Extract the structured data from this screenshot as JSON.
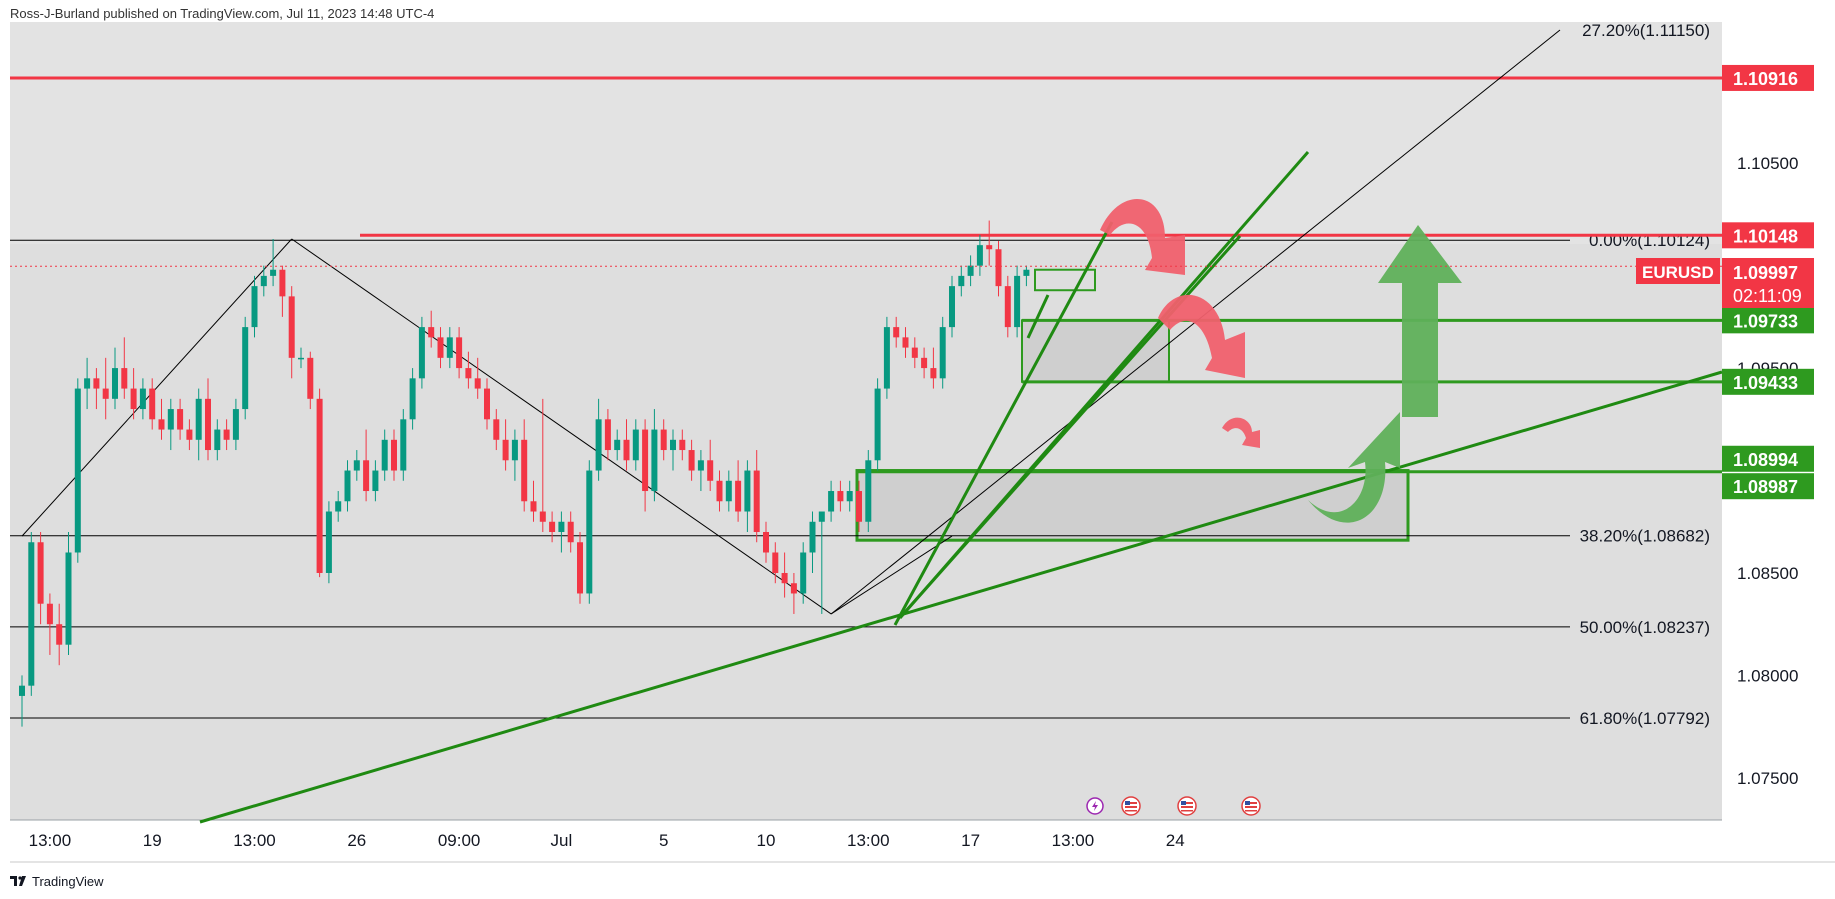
{
  "header": {
    "publisher_line": "Ross-J-Burland published on TradingView.com, Jul 11, 2023 14:48 UTC-4"
  },
  "footer": {
    "logo_text": "TradingView",
    "logo_icon": "tradingview-logo-icon"
  },
  "colors": {
    "background": "#ffffff",
    "pane_bg": "#e3e3e3",
    "pane_dark": "#d4d4d4",
    "up_candle": "#089981",
    "down_candle": "#f23645",
    "red_level": "#f23645",
    "green_level": "#2e9a1f",
    "trendline": "#1f8a12",
    "fib_line": "#000000",
    "arrow_red": "#f0606d",
    "arrow_green": "#5fb05a"
  },
  "symbol_badge": {
    "label": "EURUSD",
    "price": "1.09997",
    "countdown": "02:11:09"
  },
  "price_tags": [
    {
      "price": 1.10916,
      "label": "1.10916",
      "color": "#f23645"
    },
    {
      "price": 1.10148,
      "label": "1.10148",
      "color": "#f23645"
    },
    {
      "price": 1.09733,
      "label": "1.09733",
      "color": "#2e9a1f"
    },
    {
      "price": 1.09433,
      "label": "1.09433",
      "color": "#2e9a1f"
    },
    {
      "price": 1.08994,
      "label": "1.08994",
      "color": "#2e9a1f"
    },
    {
      "price": 1.08987,
      "label": "1.08987",
      "color": "#2e9a1f"
    }
  ],
  "events_icons": [
    "lightning-icon",
    "us-flag-icon",
    "us-flag-icon",
    "us-flag-icon"
  ],
  "chart_data": {
    "type": "candlestick",
    "symbol": "EURUSD",
    "ylim": [
      1.0745,
      1.1115
    ],
    "y_ticks": [
      {
        "value": 1.105,
        "label": "1.10500"
      },
      {
        "value": 1.095,
        "label": "1.09500"
      },
      {
        "value": 1.085,
        "label": "1.08500"
      },
      {
        "value": 1.08,
        "label": "1.08000"
      },
      {
        "value": 1.075,
        "label": "1.07500"
      }
    ],
    "x_ticks": [
      {
        "index": 3,
        "label": "13:00"
      },
      {
        "index": 14,
        "label": "19"
      },
      {
        "index": 25,
        "label": "13:00"
      },
      {
        "index": 36,
        "label": "26"
      },
      {
        "index": 47,
        "label": "09:00"
      },
      {
        "index": 58,
        "label": "Jul"
      },
      {
        "index": 69,
        "label": "5"
      },
      {
        "index": 80,
        "label": "10"
      },
      {
        "index": 91,
        "label": "13:00"
      },
      {
        "index": 102,
        "label": "17"
      },
      {
        "index": 113,
        "label": "13:00"
      },
      {
        "index": 124,
        "label": "24"
      }
    ],
    "fib_levels": [
      {
        "label": "27.20%(1.11150)",
        "price": 1.1115
      },
      {
        "label": "0.00%(1.10124)",
        "price": 1.10124
      },
      {
        "label": "38.20%(1.08682)",
        "price": 1.08682
      },
      {
        "label": "50.00%(1.08237)",
        "price": 1.08237
      },
      {
        "label": "61.80%(1.07792)",
        "price": 1.07792
      }
    ],
    "horizontal_levels": [
      {
        "price": 1.10916,
        "color": "red"
      },
      {
        "price": 1.10148,
        "color": "red"
      },
      {
        "price": 1.09733,
        "color": "green"
      },
      {
        "price": 1.09433,
        "color": "green"
      },
      {
        "price": 1.08994,
        "color": "green"
      }
    ],
    "current_price": 1.09997,
    "candles": [
      [
        1.079,
        1.08,
        1.0775,
        1.0795
      ],
      [
        1.0795,
        1.087,
        1.079,
        1.0865
      ],
      [
        1.0865,
        1.087,
        1.0825,
        1.0835
      ],
      [
        1.0835,
        1.084,
        1.081,
        1.0825
      ],
      [
        1.0825,
        1.0835,
        1.0805,
        1.0815
      ],
      [
        1.0815,
        1.087,
        1.081,
        1.086
      ],
      [
        1.086,
        1.0945,
        1.0855,
        1.094
      ],
      [
        1.094,
        1.0955,
        1.093,
        1.0945
      ],
      [
        1.0945,
        1.095,
        1.093,
        1.094
      ],
      [
        1.094,
        1.0955,
        1.0925,
        1.0935
      ],
      [
        1.0935,
        1.096,
        1.093,
        1.095
      ],
      [
        1.095,
        1.0965,
        1.0935,
        1.094
      ],
      [
        1.094,
        1.095,
        1.0925,
        1.093
      ],
      [
        1.093,
        1.0945,
        1.0925,
        1.094
      ],
      [
        1.094,
        1.0945,
        1.092,
        1.0925
      ],
      [
        1.0925,
        1.0935,
        1.0915,
        1.092
      ],
      [
        1.092,
        1.0935,
        1.091,
        1.093
      ],
      [
        1.093,
        1.0935,
        1.0915,
        1.092
      ],
      [
        1.092,
        1.0925,
        1.091,
        1.0915
      ],
      [
        1.0915,
        1.094,
        1.0905,
        1.0935
      ],
      [
        1.0935,
        1.0945,
        1.0905,
        1.091
      ],
      [
        1.091,
        1.0925,
        1.0905,
        1.092
      ],
      [
        1.092,
        1.0925,
        1.091,
        1.0915
      ],
      [
        1.0915,
        1.0935,
        1.091,
        1.093
      ],
      [
        1.093,
        1.0975,
        1.0925,
        1.097
      ],
      [
        1.097,
        1.0995,
        1.0965,
        1.099
      ],
      [
        1.099,
        1.1,
        1.0985,
        1.0995
      ],
      [
        1.0995,
        1.1013,
        1.099,
        1.0998
      ],
      [
        1.0998,
        1.1,
        1.0975,
        1.0985
      ],
      [
        1.0985,
        1.099,
        1.0945,
        1.0955
      ],
      [
        1.0955,
        1.096,
        1.095,
        1.0955
      ],
      [
        1.0955,
        1.0958,
        1.093,
        1.0935
      ],
      [
        1.0935,
        1.094,
        1.0848,
        1.085
      ],
      [
        1.085,
        1.0885,
        1.0845,
        1.088
      ],
      [
        1.088,
        1.089,
        1.0875,
        1.0885
      ],
      [
        1.0885,
        1.0905,
        1.088,
        1.09
      ],
      [
        1.09,
        1.091,
        1.0895,
        1.0905
      ],
      [
        1.0905,
        1.092,
        1.0885,
        1.089
      ],
      [
        1.089,
        1.0905,
        1.0885,
        1.09
      ],
      [
        1.09,
        1.092,
        1.0895,
        1.0915
      ],
      [
        1.0915,
        1.092,
        1.0895,
        1.09
      ],
      [
        1.09,
        1.093,
        1.0895,
        1.0925
      ],
      [
        1.0925,
        1.095,
        1.092,
        1.0945
      ],
      [
        1.0945,
        1.0975,
        1.094,
        1.097
      ],
      [
        1.097,
        1.0978,
        1.096,
        1.0965
      ],
      [
        1.0965,
        1.097,
        1.095,
        1.0955
      ],
      [
        1.0955,
        1.097,
        1.095,
        1.0965
      ],
      [
        1.0965,
        1.097,
        1.0945,
        1.095
      ],
      [
        1.095,
        1.0958,
        1.094,
        1.0945
      ],
      [
        1.0945,
        1.0955,
        1.0935,
        1.094
      ],
      [
        1.094,
        1.0945,
        1.092,
        1.0925
      ],
      [
        1.0925,
        1.093,
        1.091,
        1.0915
      ],
      [
        1.0915,
        1.0925,
        1.09,
        1.0905
      ],
      [
        1.0905,
        1.092,
        1.0895,
        1.0915
      ],
      [
        1.0915,
        1.0925,
        1.088,
        1.0885
      ],
      [
        1.0885,
        1.0895,
        1.0875,
        1.088
      ],
      [
        1.088,
        1.0935,
        1.087,
        1.0875
      ],
      [
        1.0875,
        1.088,
        1.0865,
        1.087
      ],
      [
        1.087,
        1.088,
        1.086,
        1.0875
      ],
      [
        1.0875,
        1.088,
        1.086,
        1.0865
      ],
      [
        1.0865,
        1.087,
        1.0835,
        1.084
      ],
      [
        1.084,
        1.0905,
        1.0835,
        1.09
      ],
      [
        1.09,
        1.0935,
        1.0895,
        1.0925
      ],
      [
        1.0925,
        1.093,
        1.0905,
        1.091
      ],
      [
        1.091,
        1.092,
        1.0905,
        1.0915
      ],
      [
        1.0915,
        1.0925,
        1.09,
        1.0905
      ],
      [
        1.0905,
        1.0925,
        1.09,
        1.092
      ],
      [
        1.092,
        1.0925,
        1.088,
        1.089
      ],
      [
        1.089,
        1.093,
        1.0885,
        1.092
      ],
      [
        1.092,
        1.0925,
        1.0905,
        1.091
      ],
      [
        1.091,
        1.092,
        1.09,
        1.0915
      ],
      [
        1.0915,
        1.092,
        1.0905,
        1.091
      ],
      [
        1.091,
        1.0915,
        1.0895,
        1.09
      ],
      [
        1.09,
        1.091,
        1.089,
        1.0905
      ],
      [
        1.0905,
        1.0915,
        1.089,
        1.0895
      ],
      [
        1.0895,
        1.09,
        1.088,
        1.0885
      ],
      [
        1.0885,
        1.09,
        1.088,
        1.0895
      ],
      [
        1.0895,
        1.0905,
        1.0875,
        1.088
      ],
      [
        1.088,
        1.0905,
        1.087,
        1.09
      ],
      [
        1.09,
        1.091,
        1.0865,
        1.087
      ],
      [
        1.087,
        1.0875,
        1.0855,
        1.086
      ],
      [
        1.086,
        1.0865,
        1.0845,
        1.085
      ],
      [
        1.085,
        1.086,
        1.0838,
        1.0845
      ],
      [
        1.0845,
        1.085,
        1.083,
        1.084
      ],
      [
        1.084,
        1.0865,
        1.0835,
        1.086
      ],
      [
        1.086,
        1.088,
        1.085,
        1.0875
      ],
      [
        1.0875,
        1.088,
        1.083,
        1.088
      ],
      [
        1.088,
        1.0895,
        1.0875,
        1.089
      ],
      [
        1.089,
        1.0895,
        1.088,
        1.0885
      ],
      [
        1.0885,
        1.0895,
        1.088,
        1.089
      ],
      [
        1.089,
        1.0895,
        1.087,
        1.0875
      ],
      [
        1.0875,
        1.091,
        1.087,
        1.0905
      ],
      [
        1.0905,
        1.0945,
        1.09,
        1.094
      ],
      [
        1.094,
        1.0975,
        1.0935,
        1.097
      ],
      [
        1.097,
        1.0975,
        1.096,
        1.0965
      ],
      [
        1.0965,
        1.097,
        1.0955,
        1.096
      ],
      [
        1.096,
        1.0965,
        1.095,
        1.0955
      ],
      [
        1.0955,
        1.096,
        1.0945,
        1.095
      ],
      [
        1.095,
        1.096,
        1.094,
        1.0945
      ],
      [
        1.0945,
        1.0975,
        1.094,
        1.097
      ],
      [
        1.097,
        1.0995,
        1.0965,
        1.099
      ],
      [
        1.099,
        1.1,
        1.0985,
        1.0995
      ],
      [
        1.0995,
        1.1005,
        1.099,
        1.1
      ],
      [
        1.1,
        1.1015,
        1.0995,
        1.101
      ],
      [
        1.101,
        1.1022,
        1.1,
        1.1008
      ],
      [
        1.1008,
        1.1012,
        1.0985,
        1.099
      ],
      [
        1.099,
        1.0995,
        1.0965,
        1.097
      ],
      [
        1.097,
        1.1,
        1.0965,
        1.0995
      ],
      [
        1.0995,
        1.1,
        1.099,
        1.0998
      ]
    ]
  }
}
